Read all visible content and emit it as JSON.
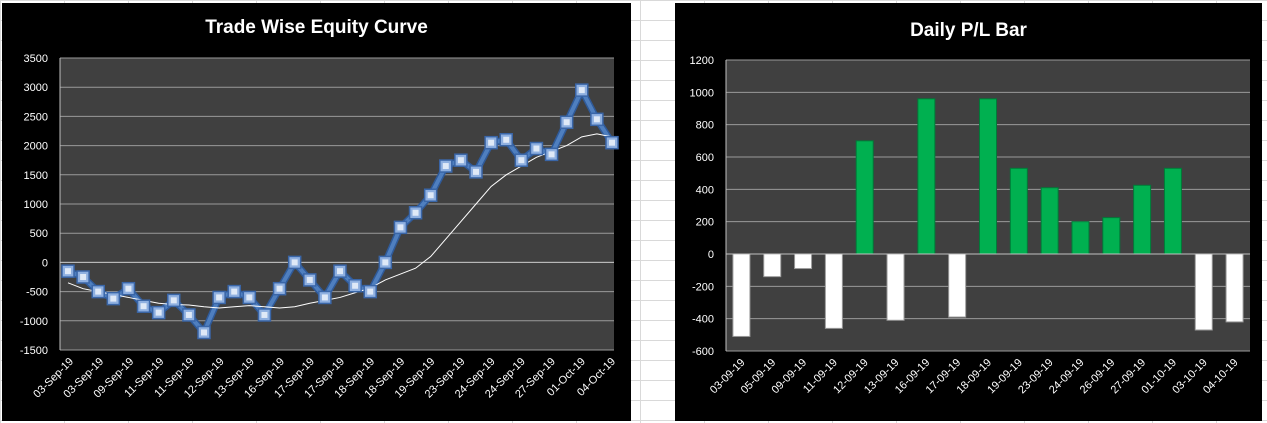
{
  "chart_data": [
    {
      "type": "line",
      "title": "Trade Wise Equity Curve",
      "xlabel": "",
      "ylabel": "",
      "ylim": [
        -1500,
        3500
      ],
      "yticks": [
        -1500,
        -1000,
        -500,
        0,
        500,
        1000,
        1500,
        2000,
        2500,
        3000,
        3500
      ],
      "x_tick_labels": [
        "03-Sep-19",
        "03-Sep-19",
        "09-Sep-19",
        "11-Sep-19",
        "11-Sep-19",
        "12-Sep-19",
        "13-Sep-19",
        "16-Sep-19",
        "17-Sep-19",
        "17-Sep-19",
        "18-Sep-19",
        "18-Sep-19",
        "19-Sep-19",
        "23-Sep-19",
        "24-Sep-19",
        "24-Sep-19",
        "27-Sep-19",
        "01-Oct-19",
        "04-Oct-19"
      ],
      "grid": true,
      "background": "#404040",
      "series": [
        {
          "values": [
            -150,
            -250,
            -500,
            -620,
            -450,
            -750,
            -860,
            -650,
            -900,
            -1200,
            -600,
            -500,
            -600,
            -900,
            -450,
            0,
            -300,
            -600,
            -150,
            -400,
            -500,
            0,
            600,
            850,
            1150,
            1650,
            1750,
            1550,
            2050,
            2100,
            1750,
            1950,
            1850,
            2400,
            2950,
            2450,
            2050
          ],
          "color": "#4f7fbf",
          "marker": "square"
        },
        {
          "values": [
            -350,
            -450,
            -500,
            -550,
            -600,
            -650,
            -700,
            -720,
            -730,
            -760,
            -780,
            -760,
            -740,
            -760,
            -780,
            -760,
            -700,
            -650,
            -600,
            -520,
            -440,
            -300,
            -200,
            -100,
            100,
            400,
            700,
            1000,
            1300,
            1500,
            1650,
            1800,
            1900,
            2000,
            2150,
            2200,
            2150
          ],
          "color": "#ffffff",
          "marker": "none"
        }
      ]
    },
    {
      "type": "bar",
      "title": "Daily P/L Bar",
      "xlabel": "",
      "ylabel": "",
      "ylim": [
        -600,
        1200
      ],
      "yticks": [
        -600,
        -400,
        -200,
        0,
        200,
        400,
        600,
        800,
        1000,
        1200
      ],
      "grid": true,
      "background": "#404040",
      "categories": [
        "03-09-19",
        "05-09-19",
        "09-09-19",
        "11-09-19",
        "12-09-19",
        "13-09-19",
        "16-09-19",
        "17-09-19",
        "18-09-19",
        "19-09-19",
        "23-09-19",
        "24-09-19",
        "26-09-19",
        "27-09-19",
        "01-10-19",
        "03-10-19",
        "04-10-19"
      ],
      "values": [
        -510,
        -140,
        -90,
        -460,
        700,
        -410,
        960,
        -390,
        960,
        530,
        410,
        200,
        225,
        425,
        530,
        -470,
        -420
      ],
      "positive_color": "#00b050",
      "negative_color": "#ffffff"
    }
  ]
}
